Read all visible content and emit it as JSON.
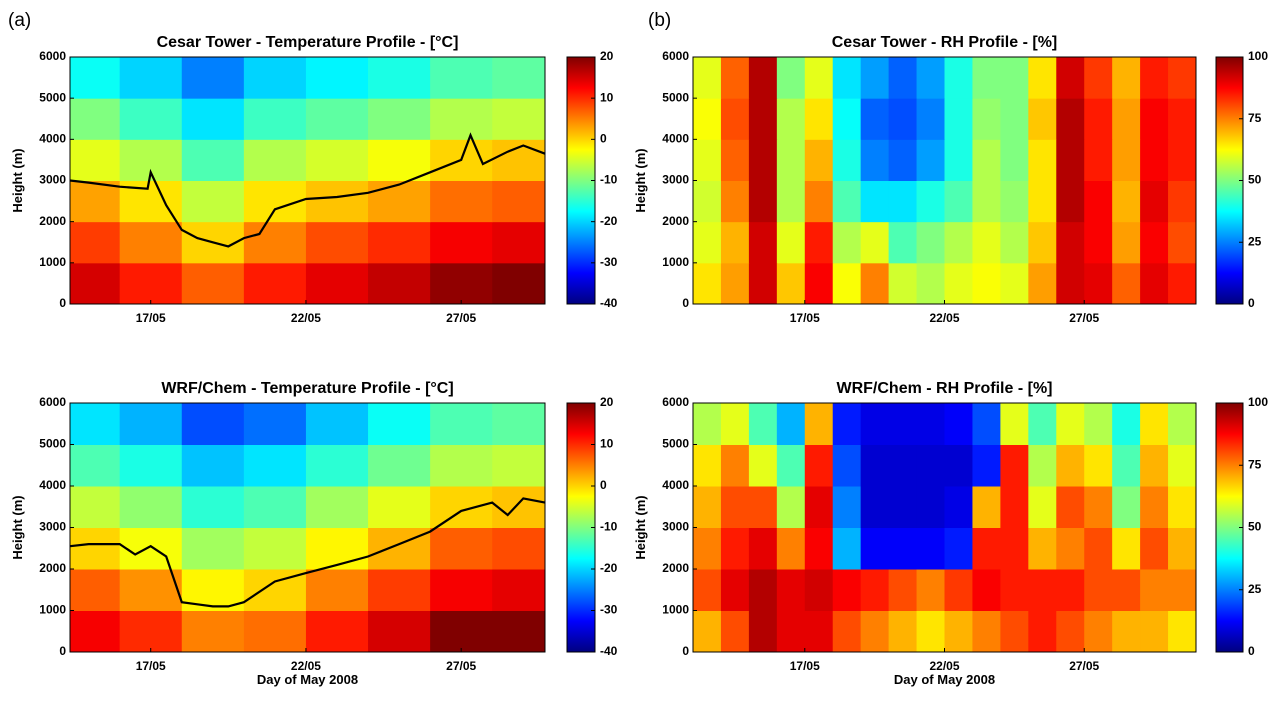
{
  "chart_data": [
    {
      "type": "heatmap",
      "panel_label": "(a)",
      "title": "Cesar Tower - Temperature Profile - [°C]",
      "ylabel": "Height (m)",
      "colormap": "jet",
      "x_edges": [
        14.4,
        16,
        18,
        20,
        22,
        24,
        26,
        28,
        29.7
      ],
      "y_edges": [
        0,
        1000,
        2000,
        3000,
        4000,
        5000,
        6000
      ],
      "z": [
        [
          15,
          11,
          7,
          11,
          14,
          16,
          19,
          20
        ],
        [
          9,
          5,
          0,
          5,
          8,
          10,
          13,
          14
        ],
        [
          3,
          -1,
          -6,
          -1,
          1,
          3,
          6,
          7
        ],
        [
          -4,
          -7,
          -13,
          -7,
          -5,
          -3,
          0,
          1
        ],
        [
          -10,
          -14,
          -19,
          -14,
          -12,
          -10,
          -7,
          -6
        ],
        [
          -17,
          -20,
          -25,
          -20,
          -18,
          -16,
          -13,
          -12
        ]
      ],
      "xlim": [
        14.4,
        29.7
      ],
      "ylim": [
        0,
        6000
      ],
      "xticks": [
        {
          "value": 17,
          "label": "17/05"
        },
        {
          "value": 22,
          "label": "22/05"
        },
        {
          "value": 27,
          "label": "27/05"
        }
      ],
      "yticks": [
        0,
        1000,
        2000,
        3000,
        4000,
        5000,
        6000
      ],
      "clim": [
        -40,
        20
      ],
      "cticks": [
        -40,
        -30,
        -20,
        -10,
        0,
        10,
        20
      ],
      "line": {
        "color": "#000000",
        "x": [
          14.4,
          15,
          16,
          16.9,
          17,
          17.5,
          18,
          18.5,
          19,
          19.5,
          20,
          20.5,
          21,
          22,
          23,
          24,
          25,
          26,
          27,
          27.3,
          27.7,
          28.5,
          29,
          29.7
        ],
        "y": [
          3000,
          2950,
          2850,
          2800,
          3200,
          2400,
          1800,
          1600,
          1500,
          1400,
          1600,
          1700,
          2300,
          2550,
          2600,
          2700,
          2900,
          3200,
          3500,
          4100,
          3400,
          3700,
          3850,
          3650
        ]
      }
    },
    {
      "type": "heatmap",
      "panel_label": "(b)",
      "title": "Cesar Tower - RH Profile - [%]",
      "ylabel": "Height (m)",
      "colormap": "jet",
      "x_edges": [
        13,
        14,
        15,
        16,
        17,
        18,
        19,
        20,
        21,
        22,
        23,
        24,
        25,
        26,
        27,
        28,
        29,
        30,
        31
      ],
      "y_edges": [
        0,
        1000,
        2000,
        3000,
        4000,
        5000,
        6000
      ],
      "z": [
        [
          65,
          72,
          92,
          68,
          88,
          62,
          75,
          58,
          55,
          60,
          62,
          60,
          72,
          92,
          90,
          78,
          90,
          85
        ],
        [
          60,
          70,
          92,
          60,
          85,
          55,
          60,
          45,
          50,
          55,
          60,
          55,
          68,
          92,
          88,
          72,
          88,
          80
        ],
        [
          58,
          75,
          95,
          55,
          75,
          45,
          35,
          35,
          40,
          45,
          55,
          52,
          65,
          95,
          88,
          70,
          90,
          82
        ],
        [
          60,
          78,
          95,
          55,
          70,
          40,
          25,
          22,
          28,
          40,
          55,
          50,
          65,
          95,
          85,
          72,
          88,
          85
        ],
        [
          62,
          80,
          95,
          55,
          65,
          38,
          22,
          20,
          25,
          40,
          52,
          50,
          68,
          95,
          85,
          72,
          88,
          85
        ],
        [
          60,
          78,
          95,
          50,
          60,
          35,
          28,
          22,
          28,
          40,
          50,
          50,
          65,
          92,
          82,
          70,
          85,
          82
        ]
      ],
      "xlim": [
        13,
        31
      ],
      "ylim": [
        0,
        6000
      ],
      "xticks": [
        {
          "value": 17,
          "label": "17/05"
        },
        {
          "value": 22,
          "label": "22/05"
        },
        {
          "value": 27,
          "label": "27/05"
        }
      ],
      "yticks": [
        0,
        1000,
        2000,
        3000,
        4000,
        5000,
        6000
      ],
      "clim": [
        0,
        100
      ],
      "cticks": [
        0,
        25,
        50,
        75,
        100
      ]
    },
    {
      "type": "heatmap",
      "title": "WRF/Chem - Temperature Profile - [°C]",
      "ylabel": "Height (m)",
      "xlabel": "Day of May 2008",
      "colormap": "jet",
      "x_edges": [
        14.4,
        16,
        18,
        20,
        22,
        24,
        26,
        28,
        29.7
      ],
      "y_edges": [
        0,
        1000,
        2000,
        3000,
        4000,
        5000,
        6000
      ],
      "z": [
        [
          13,
          10,
          5,
          6,
          11,
          15,
          20,
          21
        ],
        [
          7,
          4,
          -2,
          0,
          5,
          9,
          13,
          14
        ],
        [
          0,
          -3,
          -8,
          -6,
          -2,
          2,
          7,
          8
        ],
        [
          -6,
          -9,
          -15,
          -13,
          -8,
          -4,
          0,
          1
        ],
        [
          -13,
          -16,
          -21,
          -19,
          -15,
          -11,
          -7,
          -6
        ],
        [
          -19,
          -22,
          -28,
          -26,
          -21,
          -17,
          -13,
          -12
        ]
      ],
      "xlim": [
        14.4,
        29.7
      ],
      "ylim": [
        0,
        6000
      ],
      "xticks": [
        {
          "value": 17,
          "label": "17/05"
        },
        {
          "value": 22,
          "label": "22/05"
        },
        {
          "value": 27,
          "label": "27/05"
        }
      ],
      "yticks": [
        0,
        1000,
        2000,
        3000,
        4000,
        5000,
        6000
      ],
      "clim": [
        -40,
        20
      ],
      "cticks": [
        -40,
        -30,
        -20,
        -10,
        0,
        10,
        20
      ],
      "line": {
        "color": "#000000",
        "x": [
          14.4,
          15,
          16,
          16.5,
          17,
          17.5,
          18,
          18.5,
          19,
          19.5,
          20,
          21,
          22,
          23,
          24,
          25,
          26,
          27,
          28,
          28.5,
          29,
          29.7
        ],
        "y": [
          2550,
          2600,
          2600,
          2350,
          2550,
          2300,
          1200,
          1150,
          1100,
          1100,
          1200,
          1700,
          1900,
          2100,
          2300,
          2600,
          2900,
          3400,
          3600,
          3300,
          3700,
          3600
        ]
      }
    },
    {
      "type": "heatmap",
      "title": "WRF/Chem - RH Profile - [%]",
      "ylabel": "Height (m)",
      "xlabel": "Day of May 2008",
      "colormap": "jet",
      "x_edges": [
        13,
        14,
        15,
        16,
        17,
        18,
        19,
        20,
        21,
        22,
        23,
        24,
        25,
        26,
        27,
        28,
        29,
        30,
        31
      ],
      "y_edges": [
        0,
        1000,
        2000,
        3000,
        4000,
        5000,
        6000
      ],
      "z": [
        [
          70,
          80,
          95,
          90,
          90,
          80,
          75,
          70,
          65,
          70,
          75,
          80,
          85,
          80,
          75,
          70,
          70,
          65
        ],
        [
          80,
          90,
          95,
          90,
          92,
          88,
          85,
          80,
          75,
          82,
          88,
          85,
          85,
          85,
          80,
          80,
          75,
          75
        ],
        [
          75,
          85,
          90,
          75,
          88,
          30,
          12,
          12,
          12,
          15,
          85,
          85,
          70,
          75,
          80,
          65,
          80,
          70
        ],
        [
          70,
          80,
          80,
          55,
          90,
          25,
          8,
          8,
          8,
          10,
          70,
          85,
          60,
          80,
          75,
          50,
          75,
          65
        ],
        [
          65,
          75,
          60,
          45,
          85,
          20,
          8,
          8,
          8,
          8,
          15,
          85,
          55,
          70,
          65,
          45,
          70,
          60
        ],
        [
          55,
          60,
          45,
          30,
          70,
          15,
          10,
          10,
          10,
          12,
          20,
          60,
          45,
          60,
          55,
          40,
          65,
          55
        ]
      ],
      "xlim": [
        13,
        31
      ],
      "ylim": [
        0,
        6000
      ],
      "xticks": [
        {
          "value": 17,
          "label": "17/05"
        },
        {
          "value": 22,
          "label": "22/05"
        },
        {
          "value": 27,
          "label": "27/05"
        }
      ],
      "yticks": [
        0,
        1000,
        2000,
        3000,
        4000,
        5000,
        6000
      ],
      "clim": [
        0,
        100
      ],
      "cticks": [
        0,
        25,
        50,
        75,
        100
      ]
    }
  ]
}
